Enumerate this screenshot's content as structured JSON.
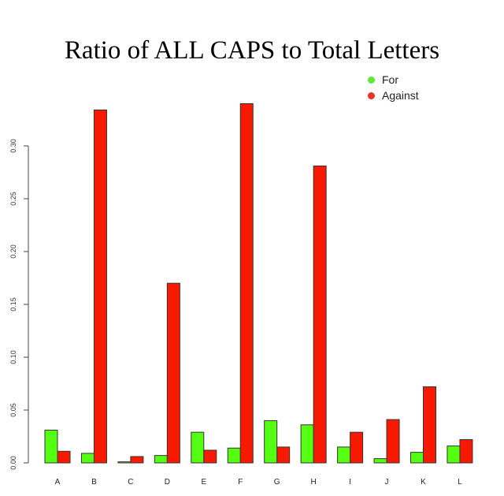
{
  "chart_data": {
    "type": "bar",
    "title": "Ratio of ALL CAPS to Total Letters",
    "xlabel": "",
    "ylabel": "",
    "categories": [
      "A",
      "B",
      "C",
      "D",
      "E",
      "F",
      "G",
      "H",
      "I",
      "J",
      "K",
      "L"
    ],
    "series": [
      {
        "name": "For",
        "color": "#55ff11",
        "values": [
          0.031,
          0.009,
          0.001,
          0.007,
          0.029,
          0.014,
          0.04,
          0.036,
          0.015,
          0.004,
          0.01,
          0.016
        ]
      },
      {
        "name": "Against",
        "color": "#f71900",
        "values": [
          0.011,
          0.334,
          0.006,
          0.17,
          0.012,
          0.34,
          0.015,
          0.281,
          0.029,
          0.041,
          0.072,
          0.022
        ]
      }
    ],
    "yticks": [
      "0.00",
      "0.05",
      "0.10",
      "0.15",
      "0.20",
      "0.25",
      "0.30"
    ],
    "ylim": [
      0,
      0.3
    ],
    "grid": false,
    "legend_position": "top-right"
  },
  "legend": {
    "items": [
      {
        "label": "For",
        "color": "#5fe83a"
      },
      {
        "label": "Against",
        "color": "#e8322a"
      }
    ]
  }
}
